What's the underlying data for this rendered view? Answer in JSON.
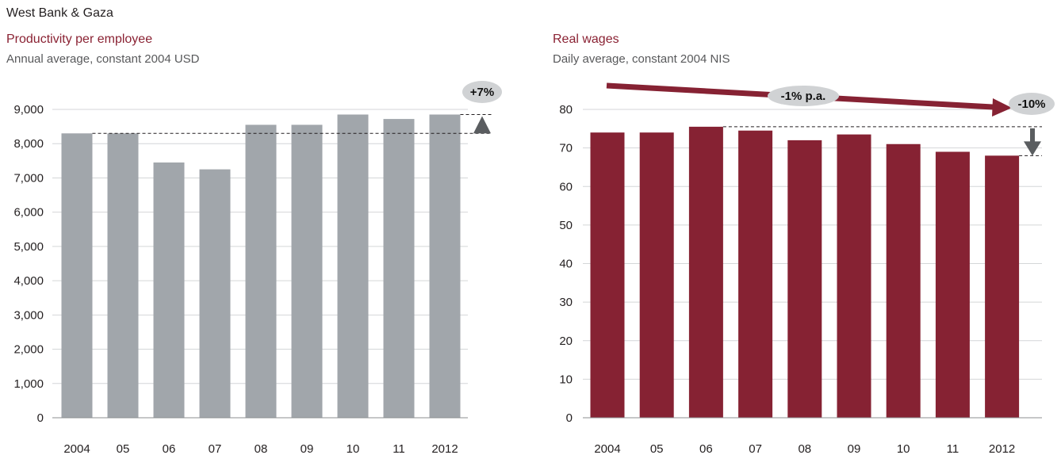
{
  "page_title": "West Bank & Gaza",
  "colors": {
    "productivity_bar": "#a1a6ab",
    "wages_bar": "#862233",
    "title_accent": "#8a2233",
    "callout_fill": "#d0d2d4",
    "arrow_gray": "#5a5d60"
  },
  "chart_data": [
    {
      "type": "bar",
      "title": "Productivity per employee",
      "subtitle": "Annual average, constant 2004 USD",
      "categories": [
        "2004",
        "05",
        "06",
        "07",
        "08",
        "09",
        "10",
        "11",
        "2012"
      ],
      "values": [
        8300,
        8300,
        7450,
        7250,
        8550,
        8550,
        8850,
        8720,
        8850
      ],
      "ylim": [
        0,
        9000
      ],
      "yticks": [
        "0",
        "1,000",
        "2,000",
        "3,000",
        "4,000",
        "5,000",
        "6,000",
        "7,000",
        "8,000",
        "9,000"
      ],
      "grid": true,
      "callout": "+7%"
    },
    {
      "type": "bar",
      "title": "Real wages",
      "subtitle": "Daily average, constant 2004 NIS",
      "categories": [
        "2004",
        "05",
        "06",
        "07",
        "08",
        "09",
        "10",
        "11",
        "2012"
      ],
      "values": [
        74,
        74,
        75.5,
        74.5,
        72,
        73.5,
        71,
        69,
        68
      ],
      "ylim": [
        0,
        80
      ],
      "yticks": [
        "0",
        "10",
        "20",
        "30",
        "40",
        "50",
        "60",
        "70",
        "80"
      ],
      "grid": true,
      "callout": "-10%",
      "trend_label": "-1% p.a."
    }
  ]
}
